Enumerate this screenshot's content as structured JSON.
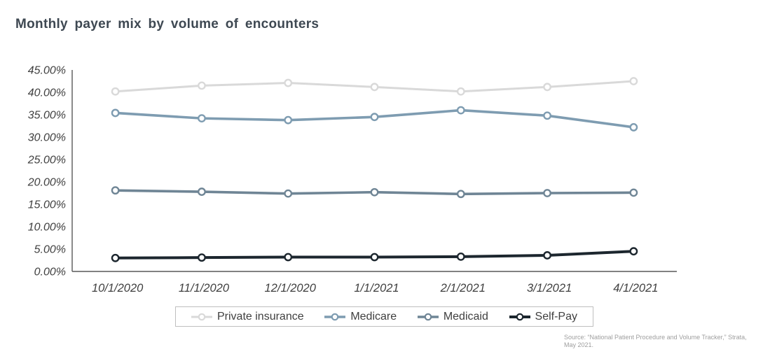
{
  "title": "Monthly payer mix by volume of encounters",
  "chart_data": {
    "type": "line",
    "title": "Monthly payer mix by volume of encounters",
    "xlabel": "",
    "ylabel": "",
    "grid": false,
    "legend_position": "bottom",
    "marker": "circle",
    "ylim": [
      0,
      45
    ],
    "ytick_values": [
      45,
      40,
      35,
      30,
      25,
      20,
      15,
      10,
      5,
      0
    ],
    "ytick_labels": [
      "45.00%",
      "40.00%",
      "35.00%",
      "30.00%",
      "25.00%",
      "20.00%",
      "15.00%",
      "10.00%",
      "5.00%",
      "0.00%"
    ],
    "categories": [
      "10/1/2020",
      "11/1/2020",
      "12/1/2020",
      "1/1/2021",
      "2/1/2021",
      "3/1/2021",
      "4/1/2021"
    ],
    "series": [
      {
        "name": "Private insurance",
        "color": "#d9d9d9",
        "values": [
          40.2,
          41.5,
          42.1,
          41.2,
          40.2,
          41.2,
          42.5
        ]
      },
      {
        "name": "Medicare",
        "color": "#7e9cb1",
        "values": [
          35.4,
          34.2,
          33.8,
          34.5,
          36.0,
          34.8,
          32.2
        ]
      },
      {
        "name": "Medicaid",
        "color": "#6f8595",
        "values": [
          18.1,
          17.8,
          17.4,
          17.7,
          17.3,
          17.5,
          17.6
        ]
      },
      {
        "name": "Self-Pay",
        "color": "#1c262e",
        "values": [
          3.0,
          3.1,
          3.2,
          3.2,
          3.3,
          3.6,
          4.5
        ]
      }
    ],
    "axis_color": "#595959"
  },
  "source": {
    "line1": "Source: “National Patient Procedure and Volume Tracker,” Strata,",
    "line2": "May 2021."
  }
}
